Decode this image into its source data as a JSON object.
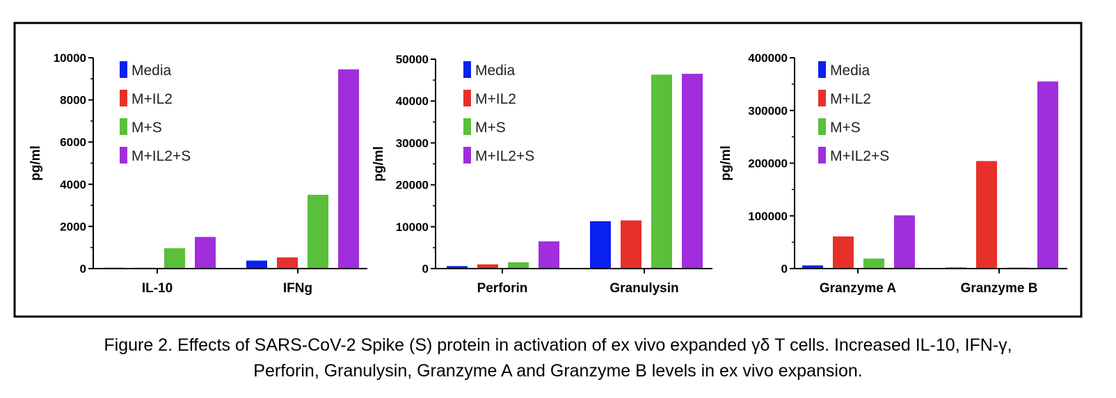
{
  "caption": {
    "line1": "Figure 2. Effects of SARS-CoV-2 Spike (S) protein in activation of ex vivo expanded γδ T cells. Increased IL-10, IFN-γ,",
    "line2": "Perforin, Granulysin, Granzyme A and Granzyme B levels in ex vivo expansion."
  },
  "colors": {
    "Media": "#0a20f0",
    "M+IL2": "#e8302a",
    "M+S": "#5abf3a",
    "M+IL2+S": "#a02edc"
  },
  "chart_data": [
    {
      "type": "bar",
      "ylabel": "pg/ml",
      "ylim": [
        0,
        10000
      ],
      "yticks": [
        "0",
        "2000",
        "4000",
        "6000",
        "8000",
        "10000"
      ],
      "legend": "top-left",
      "categories": [
        "IL-10",
        "IFNg"
      ],
      "series": [
        {
          "name": "Media",
          "values": [
            40,
            380
          ]
        },
        {
          "name": "M+IL2",
          "values": [
            40,
            530
          ]
        },
        {
          "name": "M+S",
          "values": [
            970,
            3500
          ]
        },
        {
          "name": "M+IL2+S",
          "values": [
            1500,
            9450
          ]
        }
      ]
    },
    {
      "type": "bar",
      "ylabel": "pg/ml",
      "ylim": [
        0,
        50000
      ],
      "yticks": [
        "0",
        "10000",
        "20000",
        "30000",
        "40000",
        "50000"
      ],
      "legend": "top-left",
      "categories": [
        "Perforin",
        "Granulysin"
      ],
      "series": [
        {
          "name": "Media",
          "values": [
            600,
            11300
          ]
        },
        {
          "name": "M+IL2",
          "values": [
            1000,
            11500
          ]
        },
        {
          "name": "M+S",
          "values": [
            1500,
            46300
          ]
        },
        {
          "name": "M+IL2+S",
          "values": [
            6500,
            46500
          ]
        }
      ]
    },
    {
      "type": "bar",
      "ylabel": "pg/ml",
      "ylim": [
        0,
        400000
      ],
      "yticks": [
        "0",
        "100000",
        "200000",
        "300000",
        "400000"
      ],
      "legend": "top-left",
      "categories": [
        "Granzyme A",
        "Granzyme B"
      ],
      "series": [
        {
          "name": "Media",
          "values": [
            6000,
            2000
          ]
        },
        {
          "name": "M+IL2",
          "values": [
            61000,
            204000
          ]
        },
        {
          "name": "M+S",
          "values": [
            19000,
            2000
          ]
        },
        {
          "name": "M+IL2+S",
          "values": [
            101000,
            355000
          ]
        }
      ]
    }
  ]
}
